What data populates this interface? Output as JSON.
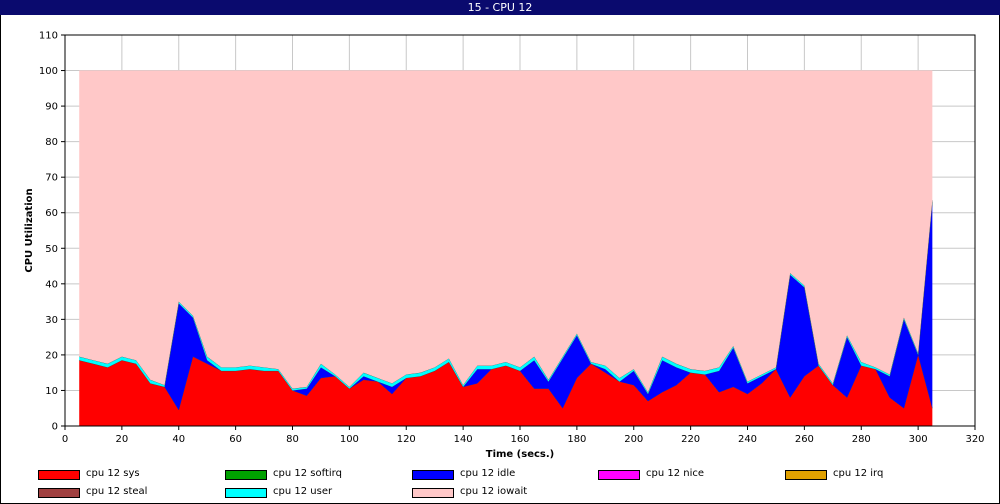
{
  "window": {
    "title": "15 - CPU 12"
  },
  "chart_data": {
    "type": "area",
    "stacked": true,
    "xlabel": "Time (secs.)",
    "ylabel": "CPU Utilization",
    "xlim": [
      0,
      320
    ],
    "ylim": [
      0,
      110
    ],
    "xticks": [
      0,
      20,
      40,
      60,
      80,
      100,
      120,
      140,
      160,
      180,
      200,
      220,
      240,
      260,
      280,
      300,
      320
    ],
    "yticks": [
      0,
      10,
      20,
      30,
      40,
      50,
      60,
      70,
      80,
      90,
      100,
      110
    ],
    "grid": true,
    "legend_position": "bottom",
    "x": [
      5,
      10,
      15,
      20,
      25,
      30,
      35,
      40,
      45,
      50,
      55,
      60,
      65,
      70,
      75,
      80,
      85,
      90,
      95,
      100,
      105,
      110,
      115,
      120,
      125,
      130,
      135,
      140,
      145,
      150,
      155,
      160,
      165,
      170,
      175,
      180,
      185,
      190,
      195,
      200,
      205,
      210,
      215,
      220,
      225,
      230,
      235,
      240,
      245,
      250,
      255,
      260,
      265,
      270,
      275,
      280,
      285,
      290,
      295,
      300,
      305
    ],
    "series": [
      {
        "name": "cpu 12 sys",
        "color": "#ff0000",
        "values": [
          18.5,
          17.5,
          16.5,
          18.5,
          17.5,
          12,
          11,
          4.5,
          19.5,
          17.5,
          15.5,
          15.5,
          16,
          15.5,
          15.5,
          10,
          8.5,
          13.5,
          14,
          10.5,
          13,
          12.5,
          9,
          13.5,
          14,
          15.5,
          18,
          11,
          12,
          16,
          17,
          15.5,
          10.5,
          10.5,
          5,
          13.5,
          17.5,
          15,
          12.5,
          11.5,
          7,
          9.5,
          11.5,
          15,
          14.5,
          9.5,
          11,
          9,
          12,
          16,
          8,
          14,
          17,
          11.5,
          8,
          17,
          16,
          8,
          5,
          20,
          5
        ]
      },
      {
        "name": "cpu 12 softirq",
        "color": "#00a000",
        "values": [
          0,
          0,
          0,
          0,
          0,
          0,
          0,
          0,
          0,
          0,
          0,
          0,
          0,
          0,
          0,
          0,
          0,
          0,
          0,
          0,
          0,
          0,
          0,
          0,
          0,
          0,
          0,
          0,
          0,
          0,
          0,
          0,
          0,
          0,
          0,
          0,
          0,
          0,
          0,
          0,
          0,
          0,
          0,
          0,
          0,
          0,
          0,
          0,
          0,
          0,
          0,
          0,
          0,
          0,
          0,
          0,
          0,
          0,
          0,
          0,
          0
        ]
      },
      {
        "name": "cpu 12 idle",
        "color": "#0000ff",
        "values": [
          0,
          0,
          0,
          0,
          0,
          0,
          0,
          30,
          11,
          1,
          0,
          0,
          0,
          0,
          0,
          0,
          2,
          3,
          0,
          0,
          1,
          0,
          2,
          0,
          0,
          0,
          0,
          0,
          4,
          0,
          0,
          0,
          8,
          2,
          14,
          12,
          0,
          1,
          0,
          4,
          2,
          9,
          5,
          0,
          0,
          6,
          11,
          3,
          2,
          0,
          34.5,
          25,
          0,
          0,
          17,
          0,
          0,
          6,
          25,
          0,
          58
        ]
      },
      {
        "name": "cpu 12 nice",
        "color": "#ff00ff",
        "values": [
          0,
          0,
          0,
          0,
          0,
          0,
          0,
          0,
          0,
          0,
          0,
          0,
          0,
          0,
          0,
          0,
          0,
          0,
          0,
          0,
          0,
          0,
          0,
          0,
          0,
          0,
          0,
          0,
          0,
          0,
          0,
          0,
          0,
          0,
          0,
          0,
          0,
          0,
          0,
          0,
          0,
          0,
          0,
          0,
          0,
          0,
          0,
          0,
          0,
          0,
          0,
          0,
          0,
          0,
          0,
          0,
          0,
          0,
          0,
          0,
          0
        ]
      },
      {
        "name": "cpu 12 irq",
        "color": "#e0a000",
        "values": [
          0,
          0,
          0,
          0,
          0,
          0,
          0,
          0,
          0,
          0,
          0,
          0,
          0,
          0,
          0,
          0,
          0,
          0,
          0,
          0,
          0,
          0,
          0,
          0,
          0,
          0,
          0,
          0,
          0,
          0,
          0,
          0,
          0,
          0,
          0,
          0,
          0,
          0,
          0,
          0,
          0,
          0,
          0,
          0,
          0,
          0,
          0,
          0,
          0,
          0,
          0,
          0,
          0,
          0,
          0,
          0,
          0,
          0,
          0,
          0,
          0
        ]
      },
      {
        "name": "cpu 12 steal",
        "color": "#a04040",
        "values": [
          0,
          0,
          0,
          0,
          0,
          0,
          0,
          0,
          0,
          0,
          0,
          0,
          0,
          0,
          0,
          0,
          0,
          0,
          0,
          0,
          0,
          0,
          0,
          0,
          0,
          0,
          0,
          0,
          0,
          0,
          0,
          0,
          0,
          0,
          0,
          0,
          0,
          0,
          0,
          0,
          0,
          0,
          0,
          0,
          0,
          0,
          0,
          0,
          0,
          0,
          0,
          0,
          0,
          0,
          0,
          0,
          0,
          0,
          0,
          0,
          0
        ]
      },
      {
        "name": "cpu 12 user",
        "color": "#00ffff",
        "values": [
          1,
          1,
          1,
          1,
          1,
          1,
          0.5,
          0.5,
          0.5,
          1,
          1,
          1,
          1,
          1,
          0.5,
          0.5,
          0.5,
          1,
          0.5,
          0.5,
          1,
          1,
          1,
          1,
          1,
          1,
          1,
          0.5,
          1,
          1,
          1,
          1,
          1,
          0.5,
          0.5,
          0.5,
          0.5,
          1,
          1,
          0.5,
          0.5,
          1,
          1,
          1,
          1,
          1,
          0.5,
          0.5,
          0.5,
          0.5,
          0.5,
          0.5,
          0.5,
          0.5,
          0.5,
          1,
          0.5,
          0.5,
          0.5,
          0.5,
          0.5
        ]
      },
      {
        "name": "cpu 12 iowait",
        "color": "#ffc8c8",
        "fill_to": 100
      }
    ]
  },
  "legend": {
    "items": [
      {
        "label": "cpu 12 sys",
        "color": "#ff0000"
      },
      {
        "label": "cpu 12 softirq",
        "color": "#00a000"
      },
      {
        "label": "cpu 12 idle",
        "color": "#0000ff"
      },
      {
        "label": "cpu 12 nice",
        "color": "#ff00ff"
      },
      {
        "label": "cpu 12 irq",
        "color": "#e0a000"
      },
      {
        "label": "cpu 12 steal",
        "color": "#a04040"
      },
      {
        "label": "cpu 12 user",
        "color": "#00ffff"
      },
      {
        "label": "cpu 12 iowait",
        "color": "#ffc8c8"
      }
    ]
  }
}
